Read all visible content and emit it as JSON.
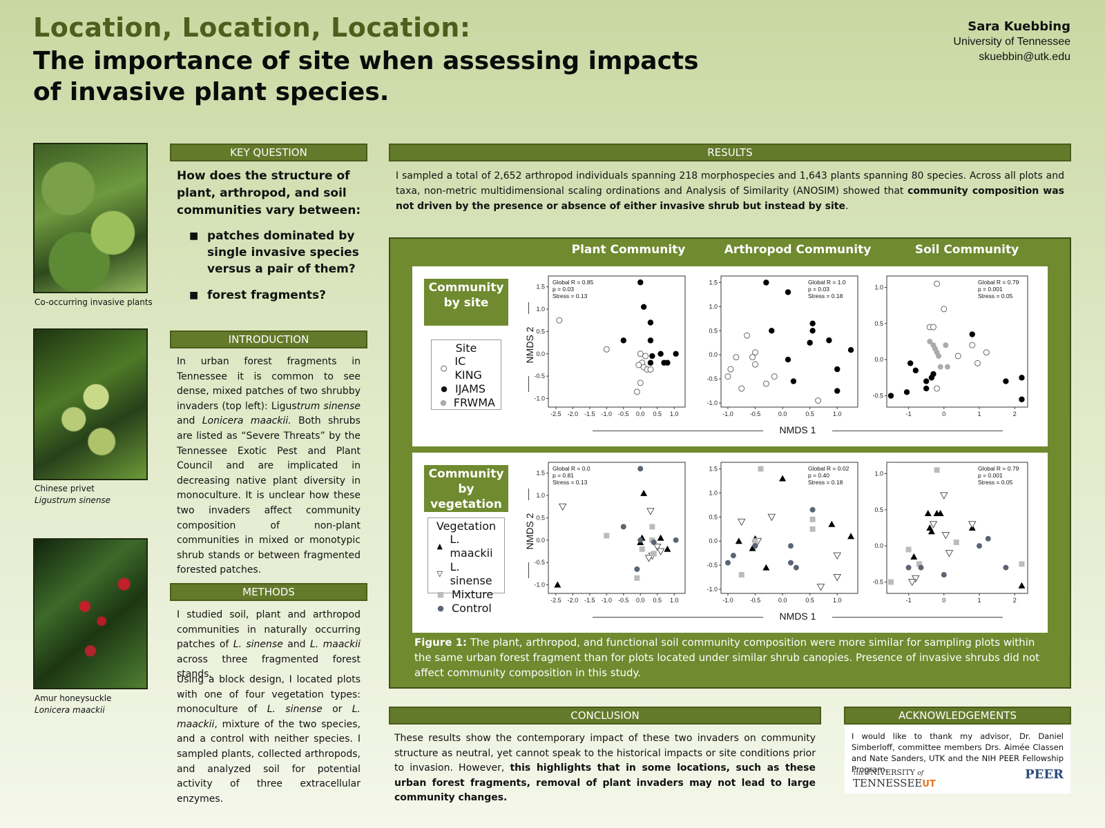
{
  "header": {
    "title_line1": "Location, Location, Location:",
    "title_line2": "The importance of site when assessing impacts of invasive plant species.",
    "author_name": "Sara Kuebbing",
    "affiliation": "University of Tennessee",
    "email": "skuebbin@utk.edu"
  },
  "photos": [
    {
      "caption": "Co-occurring invasive plants",
      "caption_italic": ""
    },
    {
      "caption": "Chinese privet",
      "caption_italic": "Ligustrum sinense"
    },
    {
      "caption": "Amur honeysuckle",
      "caption_italic": "Lonicera maackii"
    }
  ],
  "key_question": {
    "heading": "KEY QUESTION",
    "question": "How does the structure of plant, arthropod, and soil communities vary between:",
    "bullet_mark": "■",
    "bullets": [
      "patches dominated by single invasive species versus a pair of them?",
      "forest fragments?"
    ]
  },
  "introduction": {
    "heading": "INTRODUCTION",
    "p1_a": "In urban forest fragments in Tennessee it is common to see dense, mixed patches of two shrubby invaders (top left): Ligus",
    "p1_b": "trum sinense",
    "p1_c": " and ",
    "p1_d": "Lonicera maackii.",
    "p1_e": " Both shrubs are listed as “Severe Threats” by the Tennessee Exotic Pest and Plant Council and are implicated in decreasing native plant diversity in monoculture. It is unclear how these two invaders affect community composition of non-plant communities in mixed or monotypic shrub stands or between fragmented forested patches."
  },
  "methods": {
    "heading": "METHODS",
    "p1_a": "I studied soil, plant and arthropod communities in naturally occurring patches of ",
    "p1_b": "L. sinense",
    "p1_c": " and ",
    "p1_d": "L. maackii",
    "p1_e": " across three fragmented forest stands.",
    "p2_a": "Using a block design, I located plots with one of four vegetation types: monoculture of ",
    "p2_b": "L. sinense",
    "p2_c": " or ",
    "p2_d": "L. maackii",
    "p2_e": ", mixture of the two species, and a control with neither species. I sampled plants, collected arthropods, and analyzed soil for potential activity of three extracellular enzymes."
  },
  "results": {
    "heading": "RESULTS",
    "text_a": "I sampled a total of 2,652 arthropod individuals spanning 218 morphospecies and 1,643 plants spanning 80 species. Across all plots and taxa, non-metric multidimensional scaling ordinations and Analysis of Similarity (ANOSIM) showed that ",
    "text_b": "community composition was not driven by the presence or absence of either invasive shrub but instead by site",
    "text_c": "."
  },
  "figure": {
    "columns": [
      "Plant Community",
      "Arthropod Community",
      "Soil Community"
    ],
    "row1_tag": "Community by site",
    "row2_tag": "Community by vegetation",
    "legend1_title": "Site",
    "legend1_items": [
      "IC KING",
      "IJAMS",
      "FRWMA"
    ],
    "legend2_title": "Vegetation",
    "legend2_items": [
      "L. maackii",
      "L. sinense",
      "Mixture",
      "Control"
    ],
    "ylabel": "NMDS 2",
    "xlabel": "NMDS 1",
    "caption_label": "Figure 1:",
    "caption_text": " The plant, arthropod, and functional soil community composition were more similar for sampling plots within the same urban forest fragment than for plots located under similar shrub canopies.  Presence of invasive shrubs did not affect community composition in this study."
  },
  "chart_data": [
    {
      "type": "scatter",
      "panel": "Plant Community by site",
      "xlim": [
        -2.6,
        1.2
      ],
      "ylim": [
        -1.1,
        1.65
      ],
      "xticks": [
        "-2.5",
        "-2.0",
        "-1.5",
        "-1.0",
        "-0.5",
        "0.0",
        "0.5",
        "1.0"
      ],
      "yticks": [
        "1.5",
        "1.0",
        "0.5",
        "0.0",
        "-0.5",
        "-1.0"
      ],
      "stats": [
        "Global R = 0.85",
        "p = 0.03",
        "Stress = 0.13"
      ],
      "series": [
        {
          "name": "IC KING",
          "marker": "open",
          "x": [
            -2.4,
            -1.0,
            0.0,
            0.05,
            -0.05,
            0.1,
            0.2,
            0.3,
            -0.1,
            0.0,
            0.15
          ],
          "y": [
            0.75,
            0.1,
            0.0,
            -0.2,
            -0.25,
            -0.3,
            -0.35,
            -0.35,
            -0.85,
            -0.65,
            -0.05
          ]
        },
        {
          "name": "IJAMS",
          "marker": "filled",
          "x": [
            0.0,
            0.1,
            0.3,
            0.3,
            -0.5,
            0.35,
            0.6,
            0.7,
            0.8,
            1.05,
            0.3
          ],
          "y": [
            1.6,
            1.05,
            0.7,
            0.3,
            0.3,
            -0.05,
            0.0,
            -0.2,
            -0.2,
            0.0,
            -0.2
          ]
        },
        {
          "name": "FRWMA",
          "marker": "grey",
          "x": [],
          "y": []
        }
      ]
    },
    {
      "type": "scatter",
      "panel": "Arthropod Community by site",
      "xlim": [
        -1.05,
        1.3
      ],
      "ylim": [
        -1.0,
        1.55
      ],
      "xticks": [
        "-1.0",
        "-0.5",
        "0.0",
        "0.5",
        "1.0"
      ],
      "yticks": [
        "1.5",
        "1.0",
        "0.5",
        "0.0",
        "-0.5",
        "-1.0"
      ],
      "stats": [
        "Global R = 1.0",
        "p = 0.03",
        "Stress = 0.18"
      ],
      "series": [
        {
          "name": "IC KING",
          "marker": "open",
          "x": [
            -1.0,
            -0.95,
            -0.85,
            -0.75,
            -0.65,
            -0.55,
            -0.5,
            -0.5,
            -0.3,
            -0.15,
            0.65
          ],
          "y": [
            -0.45,
            -0.3,
            -0.05,
            -0.7,
            0.4,
            -0.05,
            -0.2,
            0.05,
            -0.6,
            -0.45,
            -0.95
          ]
        },
        {
          "name": "IJAMS",
          "marker": "filled",
          "x": [
            -0.3,
            0.1,
            -0.2,
            0.55,
            0.55,
            0.5,
            0.85,
            1.25,
            0.1,
            0.2,
            1.0,
            1.0
          ],
          "y": [
            1.5,
            1.3,
            0.5,
            0.65,
            0.5,
            0.25,
            0.3,
            0.1,
            -0.1,
            -0.55,
            -0.3,
            -0.75
          ]
        },
        {
          "name": "FRWMA",
          "marker": "grey",
          "x": [],
          "y": []
        }
      ]
    },
    {
      "type": "scatter",
      "panel": "Soil Community by site",
      "xlim": [
        -1.5,
        2.25
      ],
      "ylim": [
        -0.6,
        1.1
      ],
      "xticks": [
        "-1",
        "0",
        "1",
        "2"
      ],
      "yticks": [
        "1.0",
        "0.5",
        "0.0",
        "-0.5"
      ],
      "stats": [
        "Global R = 0.79",
        "p = 0.001",
        "Stress = 0.05"
      ],
      "series": [
        {
          "name": "IC KING",
          "marker": "open",
          "x": [
            -0.2,
            0.0,
            -0.4,
            -0.3,
            0.4,
            0.8,
            1.2,
            0.95,
            -0.2
          ],
          "y": [
            1.05,
            0.7,
            0.45,
            0.45,
            0.05,
            0.2,
            0.1,
            -0.05,
            -0.4
          ]
        },
        {
          "name": "IJAMS",
          "marker": "filled",
          "x": [
            -1.5,
            -1.05,
            -0.95,
            -0.8,
            -0.5,
            -0.5,
            -0.35,
            -0.3,
            0.8,
            1.75,
            2.2,
            2.2
          ],
          "y": [
            -0.5,
            -0.45,
            -0.05,
            -0.15,
            -0.3,
            -0.4,
            -0.25,
            -0.2,
            0.35,
            -0.3,
            -0.25,
            -0.55
          ]
        },
        {
          "name": "FRWMA",
          "marker": "grey",
          "x": [
            -0.4,
            -0.3,
            -0.25,
            -0.2,
            -0.15,
            -0.1,
            0.05,
            0.1
          ],
          "y": [
            0.25,
            0.2,
            0.15,
            0.1,
            0.05,
            -0.1,
            0.2,
            -0.1
          ]
        }
      ]
    },
    {
      "type": "scatter",
      "panel": "Plant Community by vegetation",
      "xlim": [
        -2.6,
        1.2
      ],
      "ylim": [
        -1.1,
        1.65
      ],
      "xticks": [
        "-2.5",
        "-2.0",
        "-1.5",
        "-1.0",
        "-0.5",
        "0.0",
        "0.5",
        "1.0"
      ],
      "yticks": [
        "1.5",
        "1.0",
        "0.5",
        "0.0",
        "-0.5",
        "-1.0"
      ],
      "stats": [
        "Global R = 0.0",
        "p = 0.81",
        "Stress = 0.13"
      ],
      "series": [
        {
          "name": "L. maackii",
          "marker": "triangle",
          "x": [
            -2.45,
            0.1,
            0.05,
            0.0,
            0.6,
            0.8
          ],
          "y": [
            -1.0,
            1.05,
            0.05,
            -0.05,
            0.05,
            -0.2
          ]
        },
        {
          "name": "L. sinense",
          "marker": "open-triangle",
          "x": [
            -2.3,
            0.3,
            0.5,
            0.6,
            0.35,
            0.25
          ],
          "y": [
            0.75,
            0.65,
            -0.15,
            -0.25,
            -0.35,
            -0.4
          ]
        },
        {
          "name": "Mixture",
          "marker": "square",
          "x": [
            -1.0,
            0.35,
            0.35,
            -0.1,
            0.05,
            0.4
          ],
          "y": [
            0.1,
            0.3,
            0.0,
            -0.85,
            -0.2,
            -0.3
          ]
        },
        {
          "name": "Control",
          "marker": "grey-circle",
          "x": [
            0.0,
            -0.5,
            0.0,
            0.4,
            1.05,
            -0.1
          ],
          "y": [
            1.6,
            0.3,
            0.0,
            -0.05,
            0.0,
            -0.65
          ]
        }
      ]
    },
    {
      "type": "scatter",
      "panel": "Arthropod Community by vegetation",
      "xlim": [
        -1.05,
        1.3
      ],
      "ylim": [
        -1.0,
        1.55
      ],
      "xticks": [
        "-1.0",
        "-0.5",
        "0.0",
        "0.5",
        "1.0"
      ],
      "yticks": [
        "1.5",
        "1.0",
        "0.5",
        "0.0",
        "-0.5",
        "-1.0"
      ],
      "stats": [
        "Global R = 0.02",
        "p = 0.40",
        "Stress = 0.18"
      ],
      "series": [
        {
          "name": "L. maackii",
          "marker": "triangle",
          "x": [
            -0.8,
            -0.55,
            -0.3,
            -0.5,
            0.0,
            0.9,
            1.25
          ],
          "y": [
            0.0,
            -0.15,
            -0.55,
            0.05,
            1.3,
            0.35,
            0.1
          ]
        },
        {
          "name": "L. sinense",
          "marker": "open-triangle",
          "x": [
            -0.75,
            -0.2,
            -0.45,
            0.7,
            1.0,
            1.0
          ],
          "y": [
            0.4,
            0.5,
            0.0,
            -0.95,
            -0.3,
            -0.75
          ]
        },
        {
          "name": "Mixture",
          "marker": "square",
          "x": [
            -0.4,
            -0.5,
            -0.75,
            0.55,
            0.55,
            -0.5
          ],
          "y": [
            1.5,
            0.0,
            -0.7,
            0.45,
            0.25,
            -0.05
          ]
        },
        {
          "name": "Control",
          "marker": "grey-circle",
          "x": [
            -1.0,
            -0.9,
            -0.5,
            0.15,
            0.25,
            0.55,
            0.15
          ],
          "y": [
            -0.45,
            -0.3,
            -0.1,
            -0.1,
            -0.55,
            0.65,
            -0.45
          ]
        }
      ]
    },
    {
      "type": "scatter",
      "panel": "Soil Community by vegetation",
      "xlim": [
        -1.5,
        2.25
      ],
      "ylim": [
        -0.6,
        1.1
      ],
      "xticks": [
        "-1",
        "0",
        "1",
        "2"
      ],
      "yticks": [
        "1.0",
        "0.5",
        "0.0",
        "-0.5"
      ],
      "stats": [
        "Global R = 0.79",
        "p = 0.001",
        "Stress = 0.05"
      ],
      "series": [
        {
          "name": "L. maackii",
          "marker": "triangle",
          "x": [
            -0.4,
            -0.35,
            -0.45,
            -0.2,
            -0.1,
            -0.85,
            0.8,
            2.2
          ],
          "y": [
            0.25,
            0.2,
            0.45,
            0.45,
            0.45,
            -0.15,
            0.25,
            -0.55
          ]
        },
        {
          "name": "L. sinense",
          "marker": "open-triangle",
          "x": [
            0.0,
            -0.3,
            0.05,
            0.15,
            0.8,
            -0.8,
            -0.9
          ],
          "y": [
            0.7,
            0.3,
            0.15,
            -0.1,
            0.3,
            -0.45,
            -0.5
          ]
        },
        {
          "name": "Mixture",
          "marker": "square",
          "x": [
            -0.2,
            -1.0,
            -0.7,
            0.35,
            2.2,
            -1.5
          ],
          "y": [
            1.05,
            -0.05,
            -0.25,
            0.05,
            -0.25,
            -0.5
          ]
        },
        {
          "name": "Control",
          "marker": "grey-circle",
          "x": [
            -1.0,
            -0.65,
            0.0,
            1.0,
            1.25,
            1.75
          ],
          "y": [
            -0.3,
            -0.3,
            -0.4,
            0.0,
            0.1,
            -0.3
          ]
        }
      ]
    }
  ],
  "conclusion": {
    "heading": "CONCLUSION",
    "text_a": "These results show the contemporary impact of these two invaders on community structure as neutral, yet cannot speak to the historical impacts or site conditions prior to invasion. However, ",
    "text_b": "this highlights that in some locations, such as these urban forest fragments, removal of plant invaders may not lead to large community changes."
  },
  "acknowledgements": {
    "heading": "ACKNOWLEDGEMENTS",
    "text": "I would like to thank my advisor, Dr. Daniel Simberloff, committee members Drs. Aimée Classen and Nate Sanders, UTK and the NIH PEER Fellowship Program.",
    "logo1_small": "THE",
    "logo1_a": "UNIVERSITY",
    "logo1_b": "of",
    "logo1_c": "TENNESSEE",
    "logo1_mark": "UT",
    "logo2": "PEER"
  }
}
